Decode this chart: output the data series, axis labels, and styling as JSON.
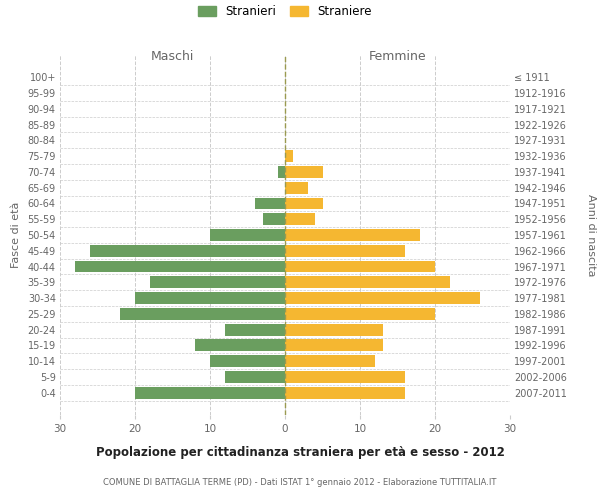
{
  "age_groups": [
    "100+",
    "95-99",
    "90-94",
    "85-89",
    "80-84",
    "75-79",
    "70-74",
    "65-69",
    "60-64",
    "55-59",
    "50-54",
    "45-49",
    "40-44",
    "35-39",
    "30-34",
    "25-29",
    "20-24",
    "15-19",
    "10-14",
    "5-9",
    "0-4"
  ],
  "birth_years": [
    "≤ 1911",
    "1912-1916",
    "1917-1921",
    "1922-1926",
    "1927-1931",
    "1932-1936",
    "1937-1941",
    "1942-1946",
    "1947-1951",
    "1952-1956",
    "1957-1961",
    "1962-1966",
    "1967-1971",
    "1972-1976",
    "1977-1981",
    "1982-1986",
    "1987-1991",
    "1992-1996",
    "1997-2001",
    "2002-2006",
    "2007-2011"
  ],
  "males": [
    0,
    0,
    0,
    0,
    0,
    0,
    1,
    0,
    4,
    3,
    10,
    26,
    28,
    18,
    20,
    22,
    8,
    12,
    10,
    8,
    20
  ],
  "females": [
    0,
    0,
    0,
    0,
    0,
    1,
    5,
    3,
    5,
    4,
    18,
    16,
    20,
    22,
    26,
    20,
    13,
    13,
    12,
    16,
    16
  ],
  "male_color": "#6a9e5f",
  "female_color": "#f5b731",
  "center_line_color": "#9a9a50",
  "grid_color": "#cccccc",
  "background_color": "#ffffff",
  "title": "Popolazione per cittadinanza straniera per età e sesso - 2012",
  "subtitle": "COMUNE DI BATTAGLIA TERME (PD) - Dati ISTAT 1° gennaio 2012 - Elaborazione TUTTITALIA.IT",
  "y_left_label": "Fasce di età",
  "y_right_label": "Anni di nascita",
  "x_left_label": "Maschi",
  "x_right_label": "Femmine",
  "legend_male": "Stranieri",
  "legend_female": "Straniere",
  "xlim": 30
}
